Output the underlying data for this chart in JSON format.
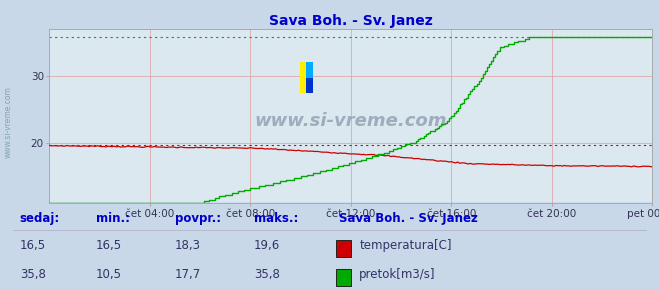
{
  "title": "Sava Boh. - Sv. Janez",
  "title_color": "#0000cc",
  "bg_color": "#c8d8e8",
  "plot_bg_color": "#dce8f0",
  "grid_color": "#ddaaaa",
  "xlim": [
    0,
    288
  ],
  "ylim_temp": [
    14,
    21
  ],
  "ylim_flow": [
    10,
    38
  ],
  "yticks_left": [
    20,
    30
  ],
  "xtick_labels": [
    "čet 04:00",
    "čet 08:00",
    "čet 12:00",
    "čet 16:00",
    "čet 20:00",
    "pet 00:00"
  ],
  "xtick_positions": [
    48,
    96,
    144,
    192,
    240,
    288
  ],
  "temp_color": "#cc0000",
  "flow_color": "#00aa00",
  "temp_max": 19.6,
  "flow_max": 35.8,
  "flow_min": 10.5,
  "watermark": "www.si-vreme.com",
  "logo_yellow": "#ffee00",
  "logo_blue": "#0033cc",
  "logo_cyan": "#00aaff",
  "sedaj_label": "sedaj:",
  "min_label": "min.:",
  "povpr_label": "povpr.:",
  "maks_label": "maks.:",
  "station_label": "Sava Boh. - Sv. Janez",
  "temp_row": [
    "16,5",
    "16,5",
    "18,3",
    "19,6"
  ],
  "flow_row": [
    "35,8",
    "10,5",
    "17,7",
    "35,8"
  ],
  "temp_legend": "temperatura[C]",
  "flow_legend": "pretok[m3/s]",
  "label_color": "#0000cc",
  "val_color": "#333366",
  "axis_arrow_color": "#aa0000",
  "side_text_color": "#7799aa",
  "ymin_display": 11,
  "ymax_display": 37
}
